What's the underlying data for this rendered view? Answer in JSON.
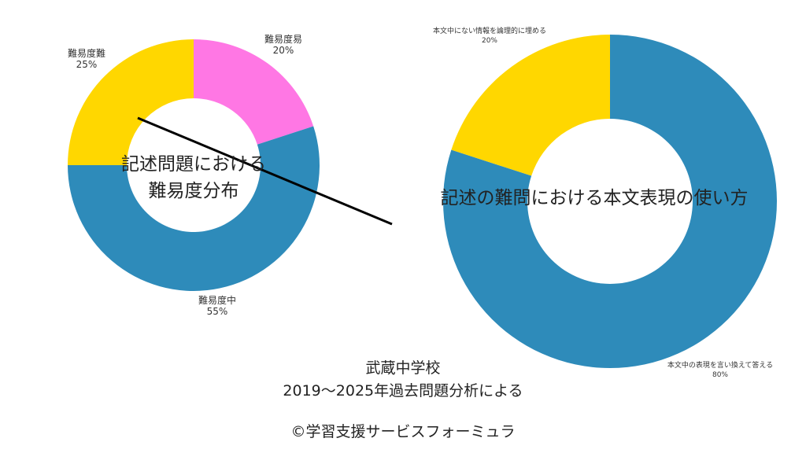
{
  "colors": {
    "blue": "#2E8BBA",
    "yellow": "#FFD700",
    "pink": "#FF77E4",
    "connector": "#000000"
  },
  "chart_data": [
    {
      "type": "pie",
      "variant": "donut",
      "title": "記述問題における難易度分布",
      "title_lines": [
        "記述問題における",
        "難易度分布"
      ],
      "slices": [
        {
          "name": "難易度易",
          "value": 20,
          "pct_label": "20%",
          "color": "#FF77E4"
        },
        {
          "name": "難易度中",
          "value": 55,
          "pct_label": "55%",
          "color": "#2E8BBA"
        },
        {
          "name": "難易度難",
          "value": 25,
          "pct_label": "25%",
          "color": "#FFD700"
        }
      ]
    },
    {
      "type": "pie",
      "variant": "donut",
      "title": "記述の難問における本文表現の使い方",
      "slices": [
        {
          "name": "本文中の表現を言い換えて答える",
          "value": 80,
          "pct_label": "80%",
          "color": "#2E8BBA"
        },
        {
          "name": "本文中にない情報を論理的に埋める",
          "value": 20,
          "pct_label": "20%",
          "color": "#FFD700"
        }
      ]
    }
  ],
  "footer": {
    "school": "武蔵中学校",
    "period": "2019〜2025年過去問題分析による",
    "copyright": "©学習支援サービスフォーミュラ"
  }
}
